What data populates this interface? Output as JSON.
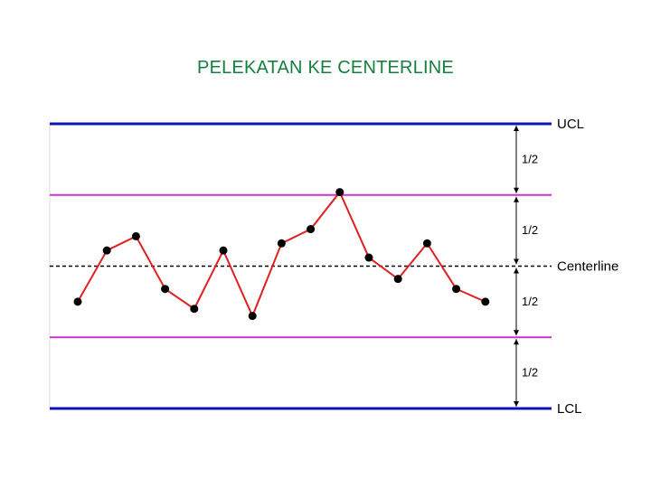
{
  "title": "PELEKATAN KE CENTERLINE",
  "chart_data": {
    "type": "line",
    "title": "PELEKATAN KE CENTERLINE",
    "xlabel": "",
    "ylabel": "",
    "ylim": [
      -1,
      1
    ],
    "series": [
      {
        "values": [
          -0.25,
          0.11,
          0.21,
          -0.16,
          -0.3,
          0.11,
          -0.35,
          0.16,
          0.26,
          0.52,
          0.06,
          -0.09,
          0.16,
          -0.16,
          -0.25
        ]
      }
    ],
    "reference_lines": [
      {
        "key": "ucl",
        "label": "UCL",
        "value": 1,
        "color": "#0a14b8",
        "style": "solid"
      },
      {
        "key": "upper_mid",
        "label": "",
        "value": 0.5,
        "color": "#cc33cc",
        "style": "solid"
      },
      {
        "key": "center",
        "label": "Centerline",
        "value": 0,
        "color": "#000000",
        "style": "dashed"
      },
      {
        "key": "lower_mid",
        "label": "",
        "value": -0.5,
        "color": "#cc33cc",
        "style": "solid"
      },
      {
        "key": "lcl",
        "label": "LCL",
        "value": -1,
        "color": "#0a14b8",
        "style": "solid"
      }
    ],
    "half_labels": [
      "1/2",
      "1/2",
      "1/2",
      "1/2"
    ],
    "colors": {
      "line": "#e02020",
      "marker": "#000000"
    },
    "grid": false,
    "legend": "none"
  }
}
